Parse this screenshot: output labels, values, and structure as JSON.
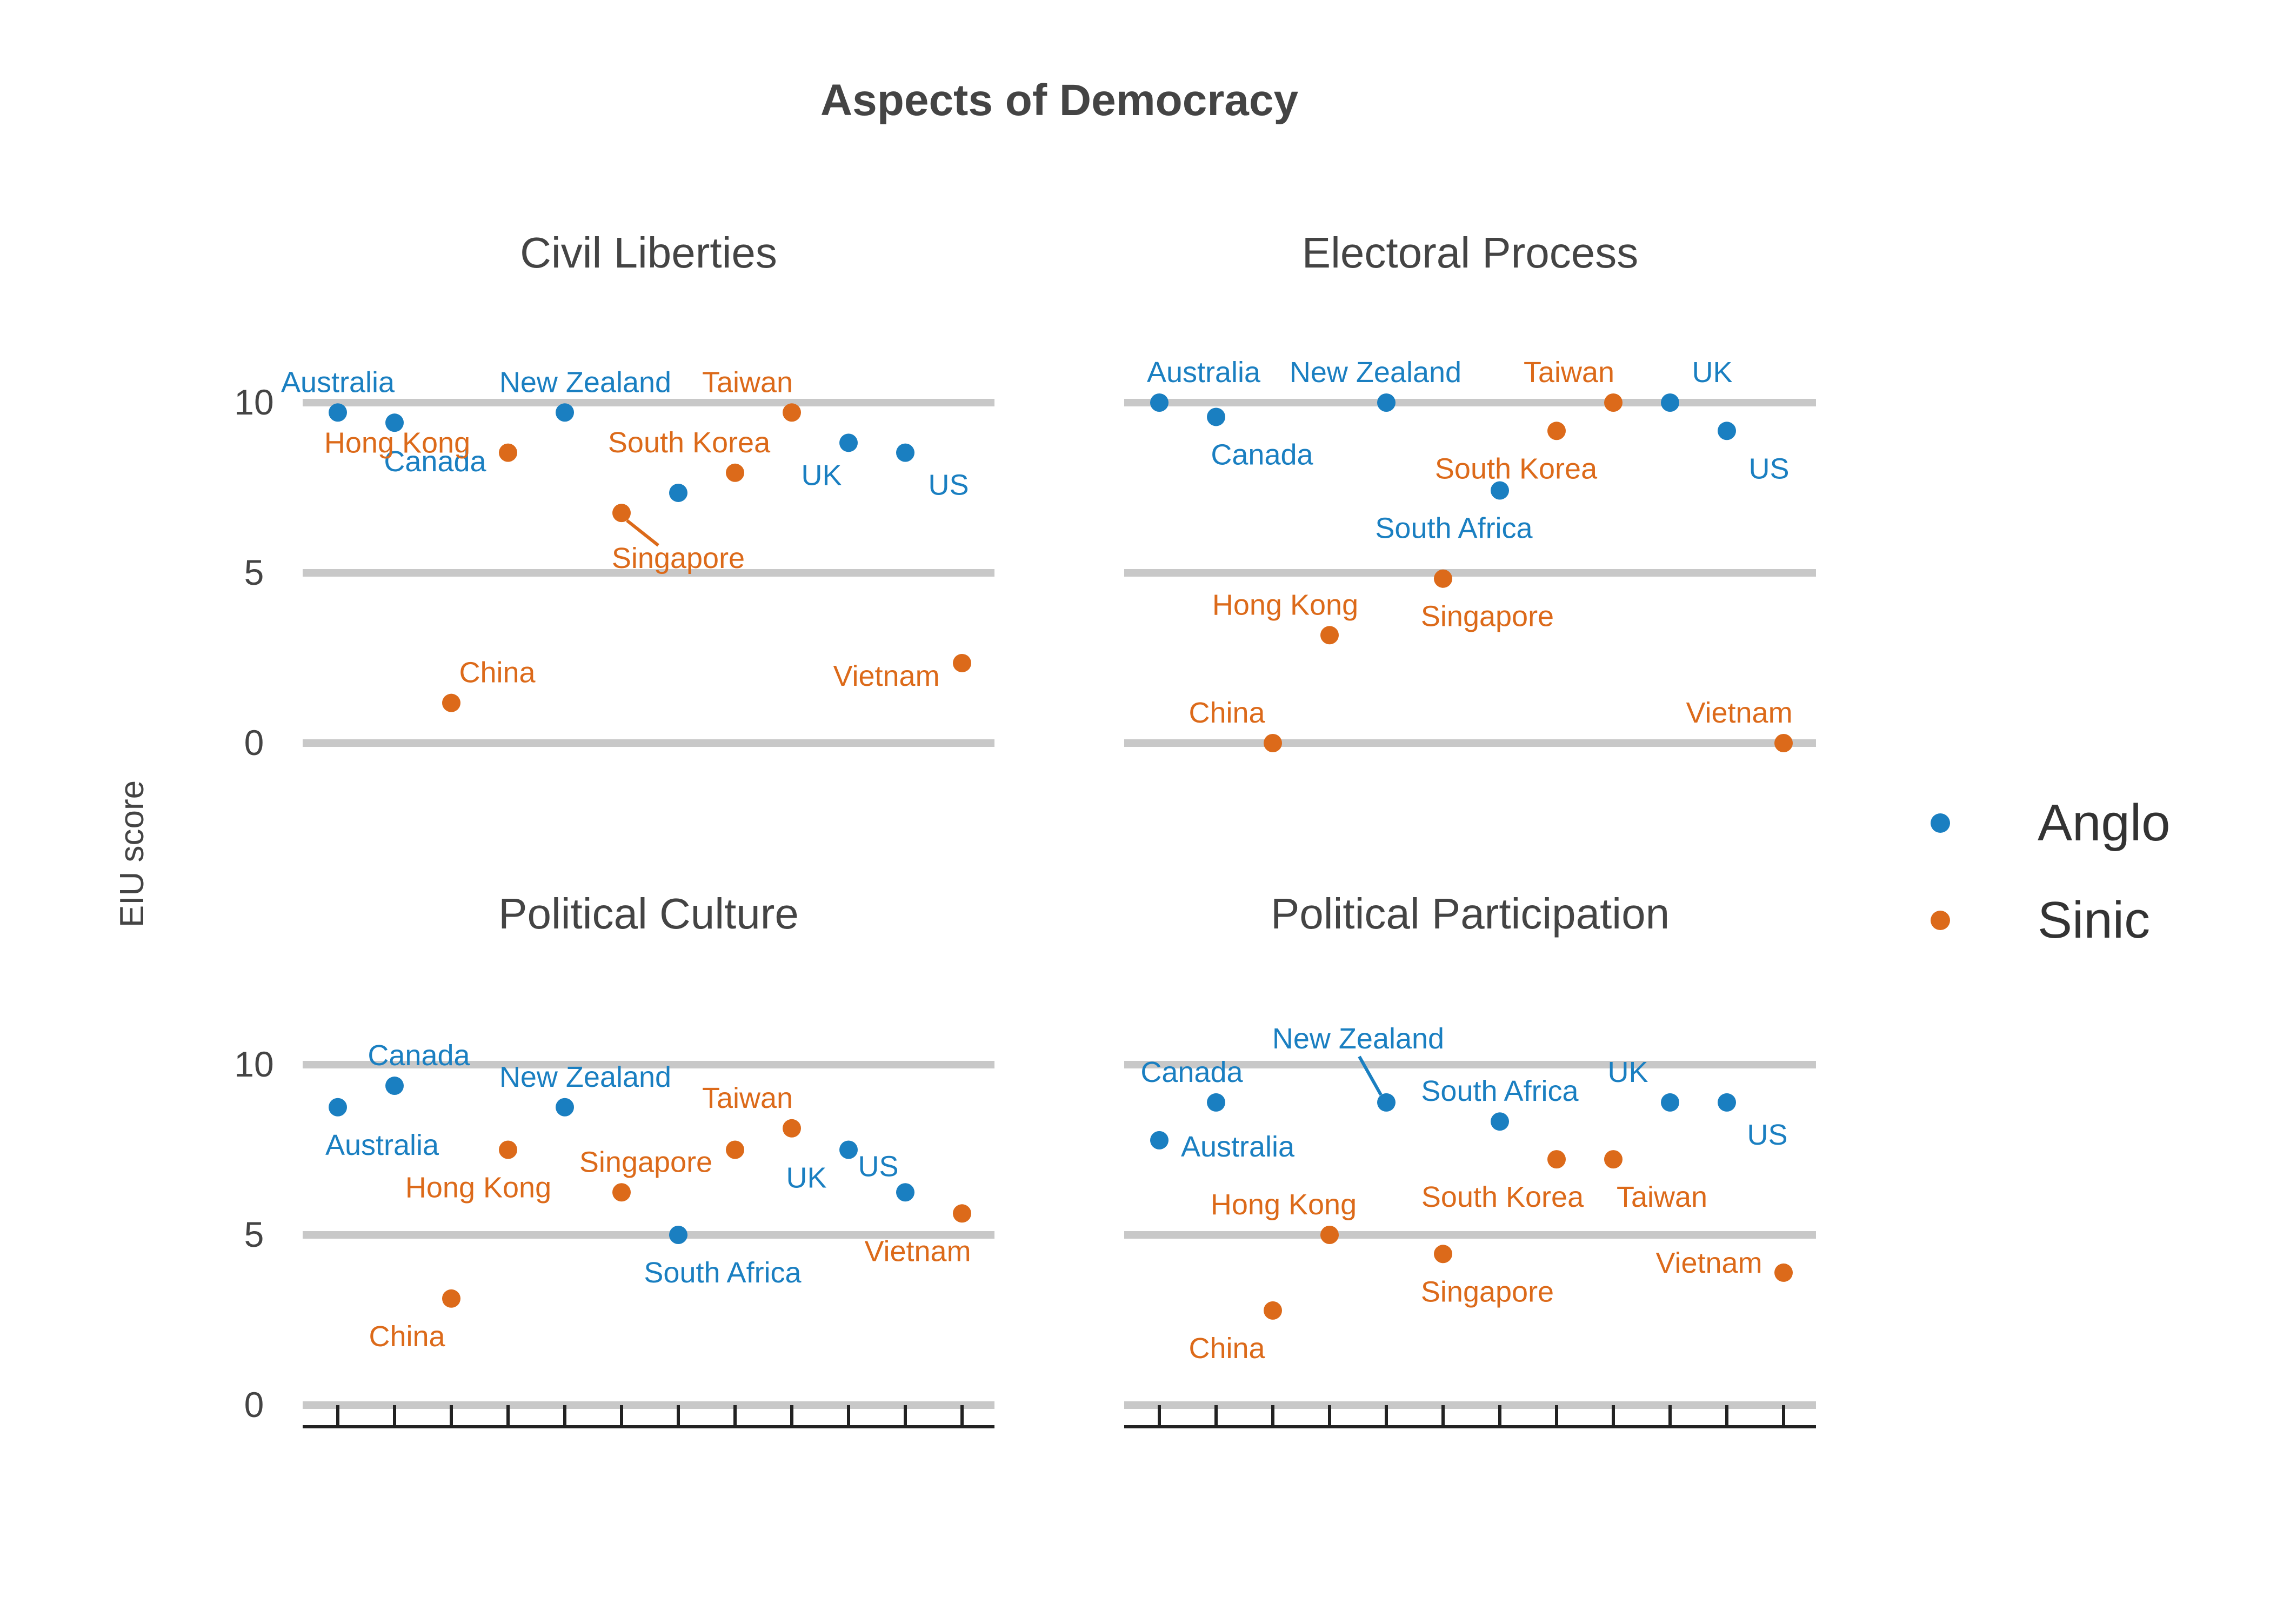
{
  "chart_data": {
    "type": "scatter",
    "title": "Aspects of Democracy",
    "ylabel": "EIU score",
    "ylim": [
      0,
      10
    ],
    "yticks": [
      0,
      5,
      10
    ],
    "grid": true,
    "legend_position": "right",
    "colors": {
      "Anglo": "#1a7fc1",
      "Sinic": "#dc6a1a",
      "grid": "#c8c8c8",
      "axis": "#222222",
      "text": "#444444"
    },
    "countries": [
      "Australia",
      "Canada",
      "China",
      "Hong Kong",
      "New Zealand",
      "Singapore",
      "South Africa",
      "South Korea",
      "Taiwan",
      "UK",
      "US",
      "Vietnam"
    ],
    "groups": {
      "Australia": "Anglo",
      "Canada": "Anglo",
      "China": "Sinic",
      "Hong Kong": "Sinic",
      "New Zealand": "Anglo",
      "Singapore": "Sinic",
      "South Africa": "Anglo",
      "South Korea": "Sinic",
      "Taiwan": "Sinic",
      "UK": "Anglo",
      "US": "Anglo",
      "Vietnam": "Sinic"
    },
    "legend": [
      {
        "name": "Anglo"
      },
      {
        "name": "Sinic"
      }
    ],
    "panels": [
      {
        "title": "Civil Liberties",
        "points": [
          {
            "country": "Australia",
            "value": 9.71,
            "label": "Australia"
          },
          {
            "country": "Canada",
            "value": 9.41,
            "label": "Canada"
          },
          {
            "country": "China",
            "value": 1.18,
            "label": "China"
          },
          {
            "country": "Hong Kong",
            "value": 8.53,
            "label": "Hong Kong"
          },
          {
            "country": "New Zealand",
            "value": 9.71,
            "label": "New Zealand"
          },
          {
            "country": "Singapore",
            "value": 6.76,
            "label": "Singapore"
          },
          {
            "country": "South Africa",
            "value": 7.35,
            "label": ""
          },
          {
            "country": "South Korea",
            "value": 7.94,
            "label": "South Korea"
          },
          {
            "country": "Taiwan",
            "value": 9.71,
            "label": "Taiwan"
          },
          {
            "country": "UK",
            "value": 8.82,
            "label": "UK"
          },
          {
            "country": "US",
            "value": 8.53,
            "label": "US"
          },
          {
            "country": "Vietnam",
            "value": 2.35,
            "label": "Vietnam"
          }
        ]
      },
      {
        "title": "Electoral Process",
        "points": [
          {
            "country": "Australia",
            "value": 10.0,
            "label": "Australia"
          },
          {
            "country": "Canada",
            "value": 9.58,
            "label": "Canada"
          },
          {
            "country": "China",
            "value": 0.0,
            "label": "China"
          },
          {
            "country": "Hong Kong",
            "value": 3.17,
            "label": "Hong Kong"
          },
          {
            "country": "New Zealand",
            "value": 10.0,
            "label": "New Zealand"
          },
          {
            "country": "Singapore",
            "value": 4.83,
            "label": "Singapore"
          },
          {
            "country": "South Africa",
            "value": 7.42,
            "label": "South Africa"
          },
          {
            "country": "South Korea",
            "value": 9.17,
            "label": "South Korea"
          },
          {
            "country": "Taiwan",
            "value": 10.0,
            "label": "Taiwan"
          },
          {
            "country": "UK",
            "value": 10.0,
            "label": "UK"
          },
          {
            "country": "US",
            "value": 9.17,
            "label": "US"
          },
          {
            "country": "Vietnam",
            "value": 0.0,
            "label": "Vietnam"
          }
        ]
      },
      {
        "title": "Political Culture",
        "points": [
          {
            "country": "Australia",
            "value": 8.75,
            "label": "Australia"
          },
          {
            "country": "Canada",
            "value": 9.38,
            "label": "Canada"
          },
          {
            "country": "China",
            "value": 3.13,
            "label": "China"
          },
          {
            "country": "Hong Kong",
            "value": 7.5,
            "label": "Hong Kong"
          },
          {
            "country": "New Zealand",
            "value": 8.75,
            "label": "New Zealand"
          },
          {
            "country": "Singapore",
            "value": 6.25,
            "label": "Singapore"
          },
          {
            "country": "South Africa",
            "value": 5.0,
            "label": "South Africa"
          },
          {
            "country": "South Korea",
            "value": 7.5,
            "label": ""
          },
          {
            "country": "Taiwan",
            "value": 8.13,
            "label": "Taiwan"
          },
          {
            "country": "UK",
            "value": 7.5,
            "label": "UK"
          },
          {
            "country": "US",
            "value": 6.25,
            "label": "US"
          },
          {
            "country": "Vietnam",
            "value": 5.63,
            "label": "Vietnam"
          }
        ]
      },
      {
        "title": "Political Participation",
        "points": [
          {
            "country": "Australia",
            "value": 7.78,
            "label": "Australia"
          },
          {
            "country": "Canada",
            "value": 8.89,
            "label": "Canada"
          },
          {
            "country": "China",
            "value": 2.78,
            "label": "China"
          },
          {
            "country": "Hong Kong",
            "value": 5.0,
            "label": "Hong Kong"
          },
          {
            "country": "New Zealand",
            "value": 8.89,
            "label": "New Zealand"
          },
          {
            "country": "Singapore",
            "value": 4.44,
            "label": "Singapore"
          },
          {
            "country": "South Africa",
            "value": 8.33,
            "label": "South Africa"
          },
          {
            "country": "South Korea",
            "value": 7.22,
            "label": "South Korea"
          },
          {
            "country": "Taiwan",
            "value": 7.22,
            "label": "Taiwan"
          },
          {
            "country": "UK",
            "value": 8.89,
            "label": "UK"
          },
          {
            "country": "US",
            "value": 8.89,
            "label": "US"
          },
          {
            "country": "Vietnam",
            "value": 3.89,
            "label": "Vietnam"
          }
        ]
      }
    ]
  }
}
